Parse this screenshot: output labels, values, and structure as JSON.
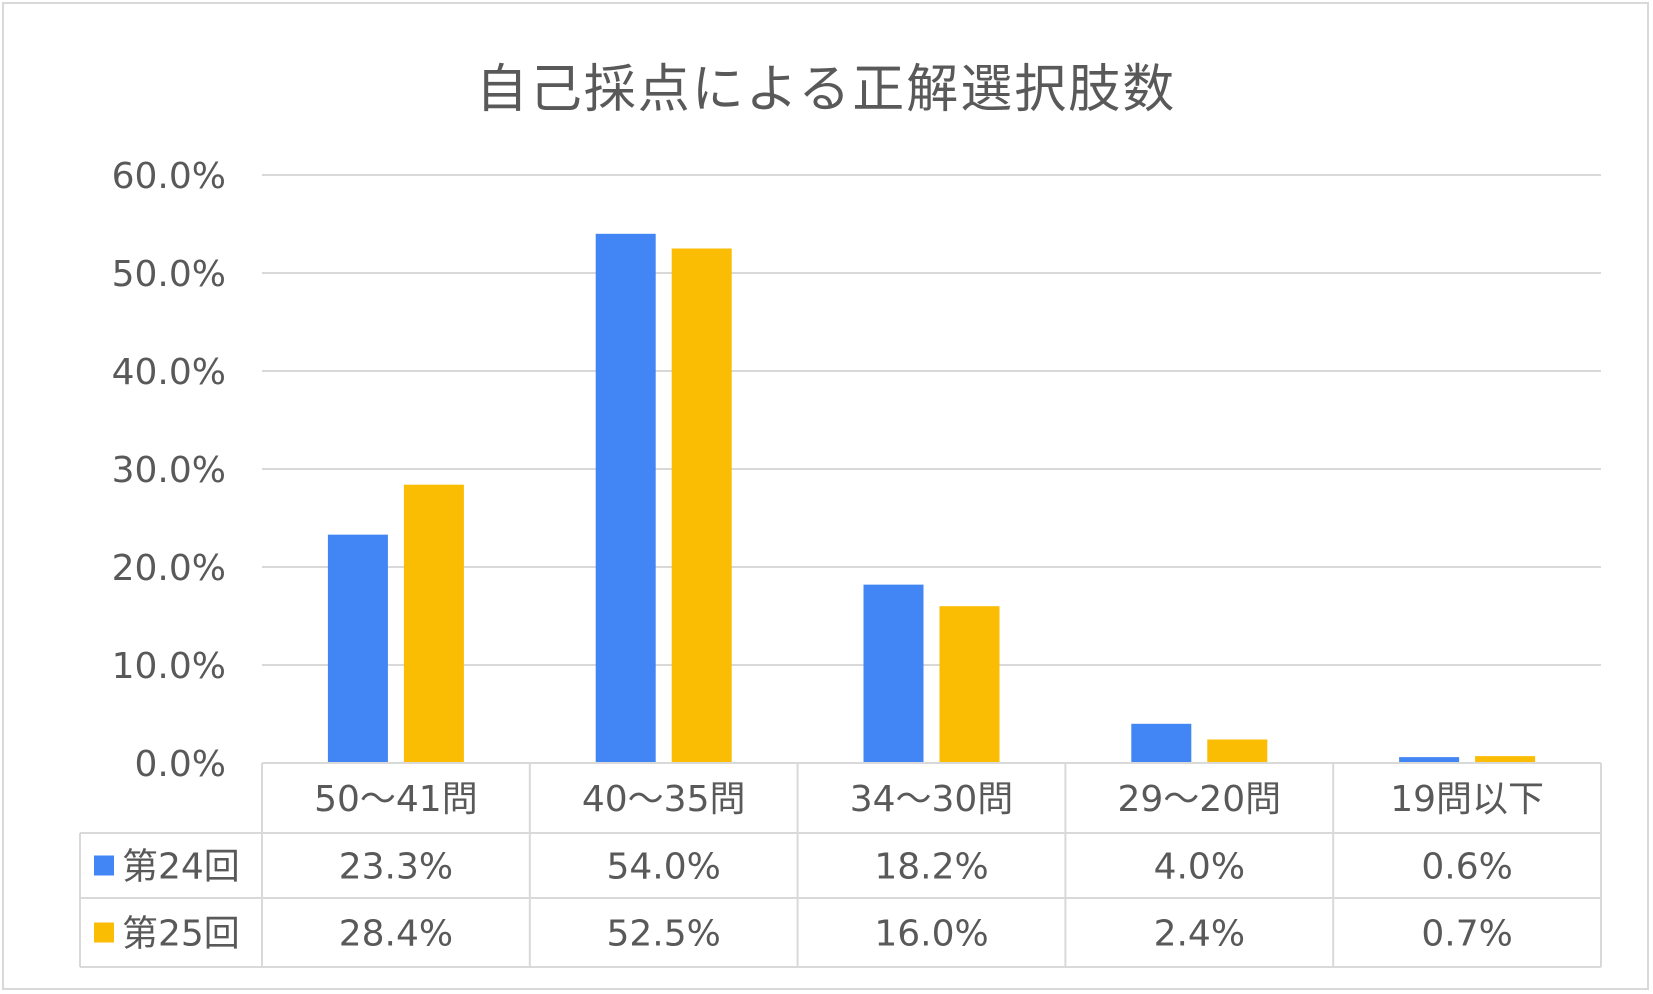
{
  "chart_data": {
    "type": "bar",
    "title": "自己採点による正解選択肢数",
    "categories": [
      "50～41問",
      "40～35問",
      "34～30問",
      "29～20問",
      "19問以下"
    ],
    "series": [
      {
        "name": "第24回",
        "color": "#4285F4",
        "values": [
          23.3,
          54.0,
          18.2,
          4.0,
          0.6
        ],
        "labels": [
          "23.3%",
          "54.0%",
          "18.2%",
          "4.0%",
          "0.6%"
        ]
      },
      {
        "name": "第25回",
        "color": "#FBBC04",
        "values": [
          28.4,
          52.5,
          16.0,
          2.4,
          0.7
        ],
        "labels": [
          "28.4%",
          "52.5%",
          "16.0%",
          "2.4%",
          "0.7%"
        ]
      }
    ],
    "ylim": [
      0,
      60
    ],
    "yticks": [
      "0.0%",
      "10.0%",
      "20.0%",
      "30.0%",
      "40.0%",
      "50.0%",
      "60.0%"
    ],
    "grid": true,
    "legend": "data-table",
    "colors": {
      "grid": "#d9d9d9",
      "text": "#595959"
    }
  }
}
